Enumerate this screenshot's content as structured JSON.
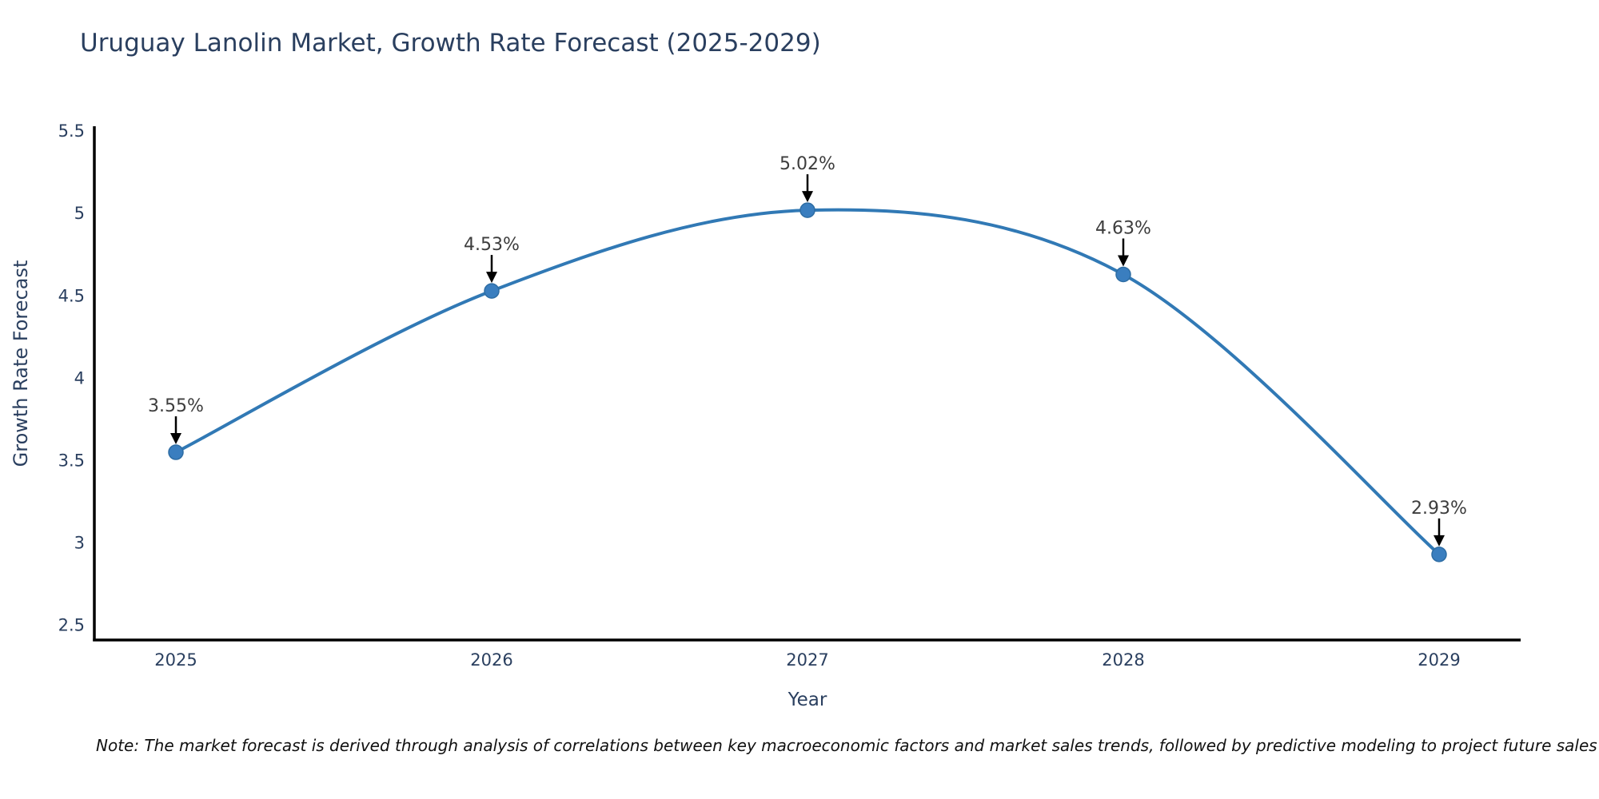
{
  "chart_data": {
    "type": "line",
    "title": "Uruguay Lanolin Market, Growth Rate Forecast (2025-2029)",
    "xlabel": "Year",
    "ylabel": "Growth Rate Forecast",
    "categories": [
      2025,
      2026,
      2027,
      2028,
      2029
    ],
    "series": [
      {
        "name": "Growth Rate Forecast",
        "values": [
          3.55,
          4.53,
          5.02,
          4.63,
          2.93
        ],
        "point_labels": [
          "3.55%",
          "4.53%",
          "5.02%",
          "4.63%",
          "2.93%"
        ]
      }
    ],
    "y_ticks": [
      2.5,
      3,
      3.5,
      4,
      4.5,
      5,
      5.5
    ],
    "ylim": [
      2.41,
      5.53
    ],
    "line_shape": "spline",
    "grid": false,
    "legend_position": "none",
    "colors": {
      "line": "#3179b5",
      "marker_fill": "#3a7ebf",
      "marker_stroke": "#2e6da4",
      "annotation_text": "#3d3d3d",
      "annotation_arrow": "#000000",
      "axis_line": "#000000",
      "tick_text": "#2a3f5f",
      "title_text": "#2a3f5f"
    }
  },
  "note": "Note: The market forecast is derived through analysis of correlations between key macroeconomic factors and market sales trends, followed by predictive modeling to project future sales"
}
